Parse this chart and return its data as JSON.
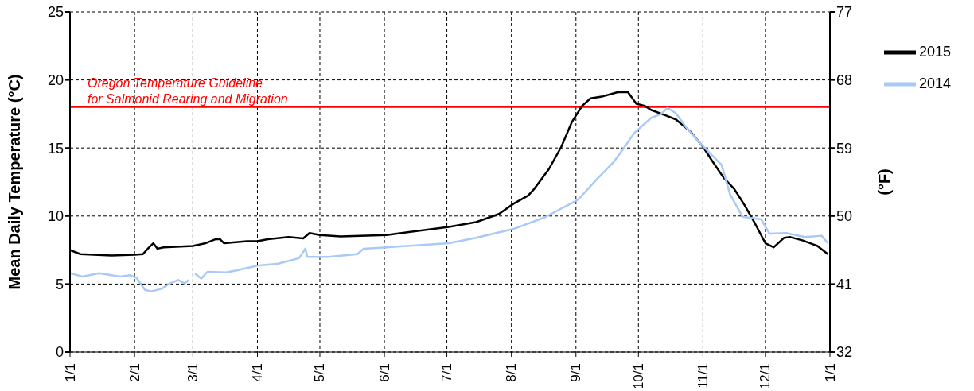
{
  "chart_data": {
    "type": "line",
    "ylabel": "Mean Daily Temperature (°C)",
    "y2label": "(°F)",
    "xlim": [
      "2015-01-01",
      "2016-01-01"
    ],
    "xticks": [
      {
        "value": "2015-01-01",
        "label": "1/1"
      },
      {
        "value": "2015-02-01",
        "label": "2/1"
      },
      {
        "value": "2015-03-01",
        "label": "3/1"
      },
      {
        "value": "2015-04-01",
        "label": "4/1"
      },
      {
        "value": "2015-05-01",
        "label": "5/1"
      },
      {
        "value": "2015-06-01",
        "label": "6/1"
      },
      {
        "value": "2015-07-01",
        "label": "7/1"
      },
      {
        "value": "2015-08-01",
        "label": "8/1"
      },
      {
        "value": "2015-09-01",
        "label": "9/1"
      },
      {
        "value": "2015-10-01",
        "label": "10/1"
      },
      {
        "value": "2015-11-01",
        "label": "11/1"
      },
      {
        "value": "2015-12-01",
        "label": "12/1"
      },
      {
        "value": "2016-01-01",
        "label": "1/1"
      }
    ],
    "ylim": [
      0,
      25
    ],
    "yticks": [
      0,
      5,
      10,
      15,
      20,
      25
    ],
    "y2lim": [
      32,
      77
    ],
    "y2ticks": [
      32,
      41,
      50,
      59,
      68,
      77
    ],
    "grid": true,
    "legend": "top right",
    "marker": "none",
    "line_style": "solid",
    "ref_lines": [
      {
        "axis": "y",
        "value": 18,
        "label": "Oregon Temperature Guideline\nfor Salmonid Rearing and Migration",
        "color": "#ff0000"
      }
    ],
    "series": [
      {
        "name": "2015",
        "color": "#000000",
        "x": [
          "2015-01-01",
          "2015-01-06",
          "2015-01-21",
          "2015-02-01",
          "2015-02-05",
          "2015-02-08",
          "2015-02-10",
          "2015-02-12",
          "2015-02-15",
          "2015-03-01",
          "2015-03-07",
          "2015-03-12",
          "2015-03-14",
          "2015-03-16",
          "2015-03-27",
          "2015-04-01",
          "2015-04-06",
          "2015-04-16",
          "2015-04-23",
          "2015-04-26",
          "2015-05-01",
          "2015-05-11",
          "2015-06-02",
          "2015-07-02",
          "2015-07-15",
          "2015-07-26",
          "2015-08-02",
          "2015-08-09",
          "2015-08-12",
          "2015-08-19",
          "2015-08-25",
          "2015-08-30",
          "2015-09-04",
          "2015-09-08",
          "2015-09-14",
          "2015-09-21",
          "2015-09-26",
          "2015-09-30",
          "2015-10-04",
          "2015-10-07",
          "2015-10-14",
          "2015-10-19",
          "2015-10-26",
          "2015-11-01",
          "2015-11-05",
          "2015-11-11",
          "2015-11-16",
          "2015-11-21",
          "2015-11-26",
          "2015-12-01",
          "2015-12-05",
          "2015-12-10",
          "2015-12-13",
          "2015-12-19",
          "2015-12-26",
          "2015-12-31"
        ],
        "values": [
          7.5,
          7.2,
          7.1,
          7.15,
          7.2,
          7.7,
          8.0,
          7.6,
          7.7,
          7.8,
          8.0,
          8.3,
          8.3,
          8.0,
          8.15,
          8.15,
          8.3,
          8.45,
          8.35,
          8.75,
          8.6,
          8.5,
          8.6,
          9.2,
          9.55,
          10.15,
          10.9,
          11.5,
          12.0,
          13.45,
          15.1,
          16.9,
          18.1,
          18.65,
          18.8,
          19.1,
          19.1,
          18.25,
          18.1,
          17.8,
          17.4,
          17.1,
          16.2,
          15.1,
          14.15,
          12.8,
          12.0,
          10.8,
          9.45,
          8.0,
          7.7,
          8.4,
          8.45,
          8.2,
          7.8,
          7.2
        ]
      },
      {
        "name": "2014",
        "color": "#a9c9f7",
        "x": [
          "2015-01-01",
          "2015-01-07",
          "2015-01-15",
          "2015-01-25",
          "2015-01-30",
          "2015-02-02",
          "2015-02-06",
          "2015-02-09",
          "2015-02-14",
          "2015-02-18",
          "2015-02-22",
          "2015-02-25",
          "2015-02-27",
          "2015-02-28",
          "2015-03-02",
          "2015-03-05",
          "2015-03-08",
          "2015-03-17",
          "2015-03-22",
          "2015-04-01",
          "2015-04-11",
          "2015-04-21",
          "2015-04-24",
          "2015-04-25",
          "2015-05-05",
          "2015-05-19",
          "2015-05-22",
          "2015-06-02",
          "2015-07-02",
          "2015-07-15",
          "2015-08-02",
          "2015-08-17",
          "2015-09-02",
          "2015-09-11",
          "2015-09-19",
          "2015-09-24",
          "2015-09-29",
          "2015-10-07",
          "2015-10-12",
          "2015-10-15",
          "2015-10-19",
          "2015-10-24",
          "2015-10-31",
          "2015-11-10",
          "2015-11-14",
          "2015-11-20",
          "2015-11-29",
          "2015-12-03",
          "2015-12-11",
          "2015-12-20",
          "2015-12-28",
          "2015-12-31"
        ],
        "values": [
          5.8,
          5.55,
          5.8,
          5.55,
          5.65,
          5.45,
          4.57,
          4.46,
          4.65,
          5.05,
          5.3,
          5.05,
          5.3,
          null,
          5.77,
          5.4,
          5.9,
          5.85,
          6.0,
          6.35,
          6.5,
          6.9,
          7.6,
          7.0,
          7.0,
          7.2,
          7.6,
          7.7,
          8.0,
          8.4,
          9.05,
          9.9,
          11.2,
          12.7,
          13.95,
          15.0,
          16.1,
          17.2,
          17.5,
          17.95,
          17.55,
          16.5,
          15.3,
          13.75,
          11.6,
          9.95,
          9.75,
          8.7,
          8.75,
          8.45,
          8.55,
          8.0
        ]
      }
    ]
  }
}
